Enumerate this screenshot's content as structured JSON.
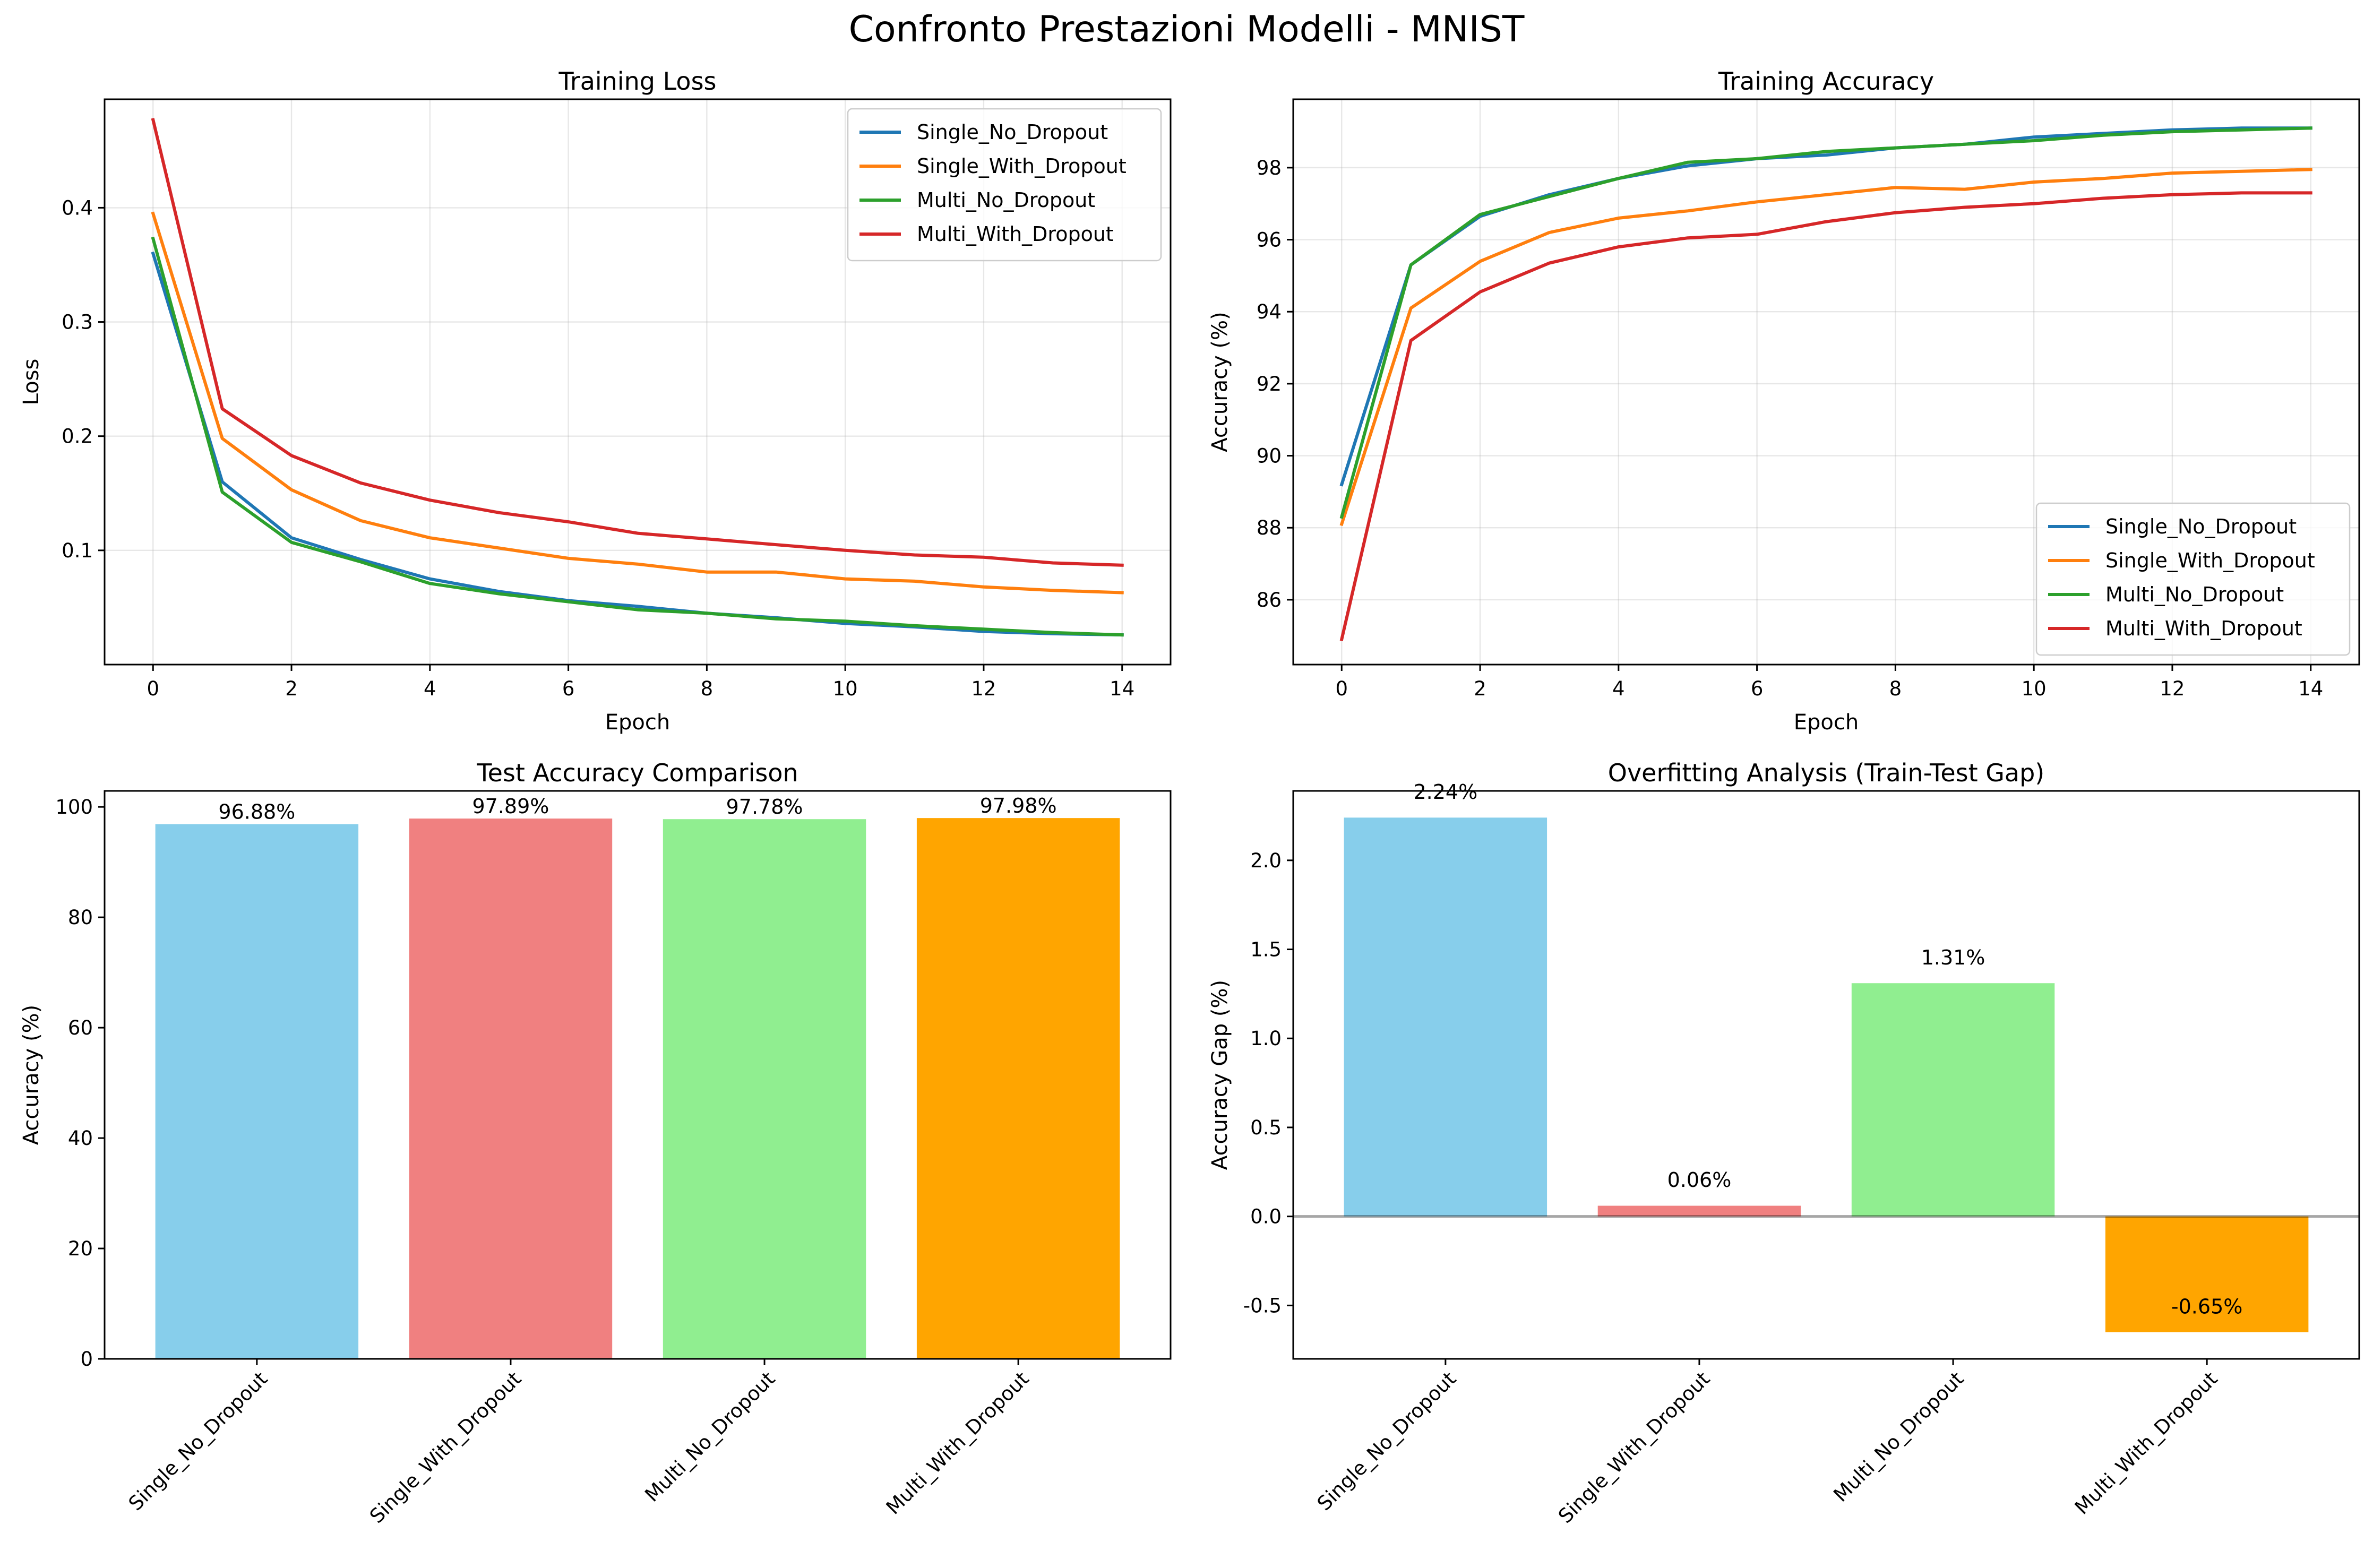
{
  "figure": {
    "title": "Confronto Prestazioni Modelli - MNIST"
  },
  "chart_data": [
    {
      "id": "loss",
      "type": "line",
      "title": "Training Loss",
      "xlabel": "Epoch",
      "ylabel": "Loss",
      "xlim": [
        -0.7,
        14.7
      ],
      "ylim": [
        0.0,
        0.495
      ],
      "xticks": [
        0,
        2,
        4,
        6,
        8,
        10,
        12,
        14
      ],
      "yticks": [
        0.1,
        0.2,
        0.3,
        0.4
      ],
      "grid": true,
      "legend": "top-right",
      "x": [
        0,
        1,
        2,
        3,
        4,
        5,
        6,
        7,
        8,
        9,
        10,
        11,
        12,
        13,
        14
      ],
      "series": [
        {
          "name": "Single_No_Dropout",
          "color": "#1f77b4",
          "values": [
            0.36,
            0.16,
            0.111,
            0.092,
            0.075,
            0.064,
            0.056,
            0.051,
            0.045,
            0.041,
            0.036,
            0.033,
            0.029,
            0.027,
            0.026
          ]
        },
        {
          "name": "Single_With_Dropout",
          "color": "#ff7f0e",
          "values": [
            0.395,
            0.198,
            0.153,
            0.126,
            0.111,
            0.102,
            0.093,
            0.088,
            0.081,
            0.081,
            0.075,
            0.073,
            0.068,
            0.065,
            0.063
          ]
        },
        {
          "name": "Multi_No_Dropout",
          "color": "#2ca02c",
          "values": [
            0.373,
            0.151,
            0.107,
            0.09,
            0.071,
            0.062,
            0.055,
            0.048,
            0.045,
            0.04,
            0.038,
            0.034,
            0.031,
            0.028,
            0.026
          ]
        },
        {
          "name": "Multi_With_Dropout",
          "color": "#d62728",
          "values": [
            0.477,
            0.224,
            0.183,
            0.159,
            0.144,
            0.133,
            0.125,
            0.115,
            0.11,
            0.105,
            0.1,
            0.096,
            0.094,
            0.089,
            0.087
          ]
        }
      ]
    },
    {
      "id": "acc",
      "type": "line",
      "title": "Training Accuracy",
      "xlabel": "Epoch",
      "ylabel": "Accuracy (%)",
      "xlim": [
        -0.7,
        14.7
      ],
      "ylim": [
        84.2,
        99.9
      ],
      "xticks": [
        0,
        2,
        4,
        6,
        8,
        10,
        12,
        14
      ],
      "yticks": [
        86,
        88,
        90,
        92,
        94,
        96,
        98
      ],
      "grid": true,
      "legend": "bottom-right",
      "x": [
        0,
        1,
        2,
        3,
        4,
        5,
        6,
        7,
        8,
        9,
        10,
        11,
        12,
        13,
        14
      ],
      "series": [
        {
          "name": "Single_No_Dropout",
          "color": "#1f77b4",
          "values": [
            89.2,
            95.3,
            96.65,
            97.25,
            97.7,
            98.05,
            98.25,
            98.35,
            98.55,
            98.65,
            98.85,
            98.95,
            99.05,
            99.1,
            99.1
          ]
        },
        {
          "name": "Single_With_Dropout",
          "color": "#ff7f0e",
          "values": [
            88.1,
            94.1,
            95.4,
            96.2,
            96.6,
            96.8,
            97.05,
            97.25,
            97.45,
            97.4,
            97.6,
            97.7,
            97.85,
            97.9,
            97.95
          ]
        },
        {
          "name": "Multi_No_Dropout",
          "color": "#2ca02c",
          "values": [
            88.3,
            95.3,
            96.7,
            97.2,
            97.7,
            98.15,
            98.25,
            98.45,
            98.55,
            98.65,
            98.75,
            98.9,
            99.0,
            99.05,
            99.1
          ]
        },
        {
          "name": "Multi_With_Dropout",
          "color": "#d62728",
          "values": [
            84.9,
            93.2,
            94.55,
            95.35,
            95.8,
            96.05,
            96.15,
            96.5,
            96.75,
            96.9,
            97.0,
            97.15,
            97.25,
            97.3,
            97.3
          ]
        }
      ]
    },
    {
      "id": "test",
      "type": "bar",
      "title": "Test Accuracy Comparison",
      "xlabel": "",
      "ylabel": "Accuracy (%)",
      "ylim": [
        0,
        102.9
      ],
      "yticks": [
        0,
        20,
        40,
        60,
        80,
        100
      ],
      "categories": [
        "Single_No_Dropout",
        "Single_With_Dropout",
        "Multi_No_Dropout",
        "Multi_With_Dropout"
      ],
      "values": [
        96.88,
        97.89,
        97.78,
        97.98
      ],
      "labels": [
        "96.88%",
        "97.89%",
        "97.78%",
        "97.98%"
      ],
      "colors": [
        "#87ceeb",
        "#f08080",
        "#90ee90",
        "#ffa500"
      ]
    },
    {
      "id": "gap",
      "type": "bar",
      "title": "Overfitting Analysis (Train-Test Gap)",
      "xlabel": "",
      "ylabel": "Accuracy Gap (%)",
      "ylim": [
        -0.8,
        2.39
      ],
      "yticks": [
        -0.5,
        0.0,
        0.5,
        1.0,
        1.5,
        2.0
      ],
      "zero_line": true,
      "categories": [
        "Single_No_Dropout",
        "Single_With_Dropout",
        "Multi_No_Dropout",
        "Multi_With_Dropout"
      ],
      "values": [
        2.24,
        0.06,
        1.31,
        -0.65
      ],
      "labels": [
        "2.24%",
        "0.06%",
        "1.31%",
        "-0.65%"
      ],
      "colors": [
        "#87ceeb",
        "#f08080",
        "#90ee90",
        "#ffa500"
      ]
    }
  ]
}
